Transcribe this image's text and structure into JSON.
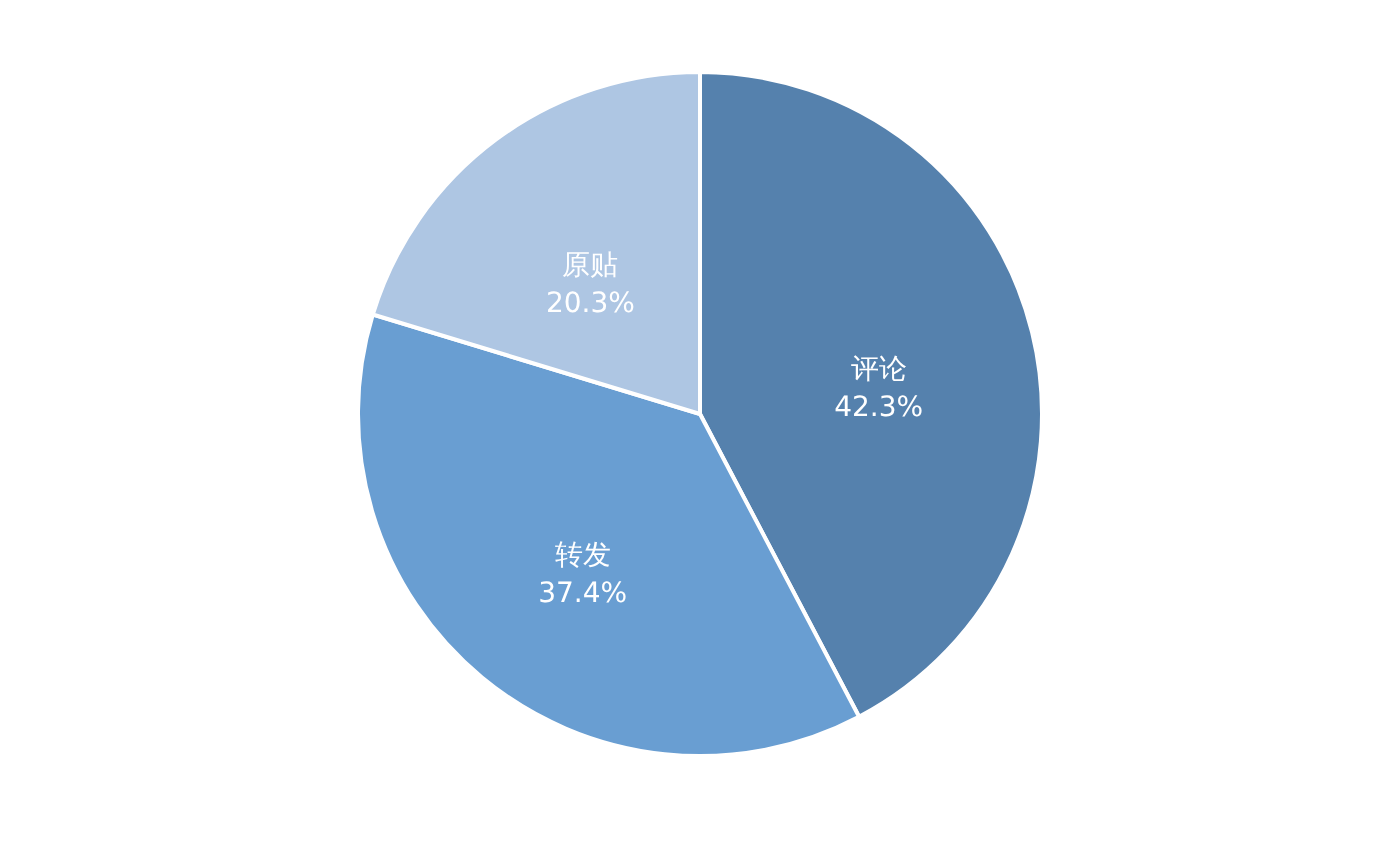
{
  "chart_data": {
    "type": "pie",
    "categories": [
      "评论",
      "转发",
      "原贴"
    ],
    "values": [
      42.3,
      37.4,
      20.3
    ],
    "colors": [
      "#5581ad",
      "#699ed2",
      "#aec6e3"
    ],
    "value_labels": [
      "42.3%",
      "37.4%",
      "20.3%"
    ]
  }
}
